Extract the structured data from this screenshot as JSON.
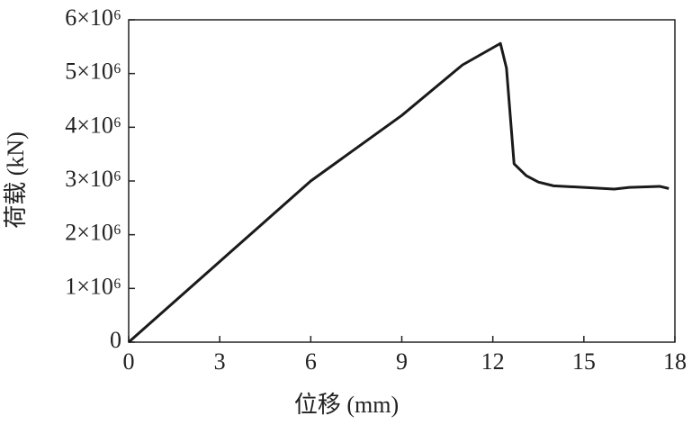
{
  "chart_data": {
    "type": "line",
    "x_label": "位移 (mm)",
    "y_label": "荷载 (kN)",
    "x": [
      0,
      3,
      6,
      9,
      11,
      12.25,
      12.45,
      12.7,
      13.1,
      13.5,
      14,
      15,
      16,
      16.5,
      17.5,
      17.8
    ],
    "values": [
      0,
      1500000,
      3000000,
      4220000,
      5160000,
      5560000,
      5100000,
      3320000,
      3100000,
      2980000,
      2910000,
      2880000,
      2850000,
      2880000,
      2900000,
      2860000
    ],
    "color": "#1a1a1a",
    "xlim": [
      0,
      18
    ],
    "xticks": [
      0,
      3,
      6,
      9,
      12,
      15,
      18
    ],
    "ylim": [
      0,
      6000000
    ],
    "yticks": [
      0,
      {
        "value": 1000000,
        "label": "1×10⁶"
      },
      {
        "value": 2000000,
        "label": "2×10⁶"
      },
      {
        "value": 3000000,
        "label": "3×10⁶"
      },
      {
        "value": 4000000,
        "label": "4×10⁶"
      },
      {
        "value": 5000000,
        "label": "5×10⁶"
      },
      {
        "value": 6000000,
        "label": "6×10⁶"
      }
    ]
  }
}
